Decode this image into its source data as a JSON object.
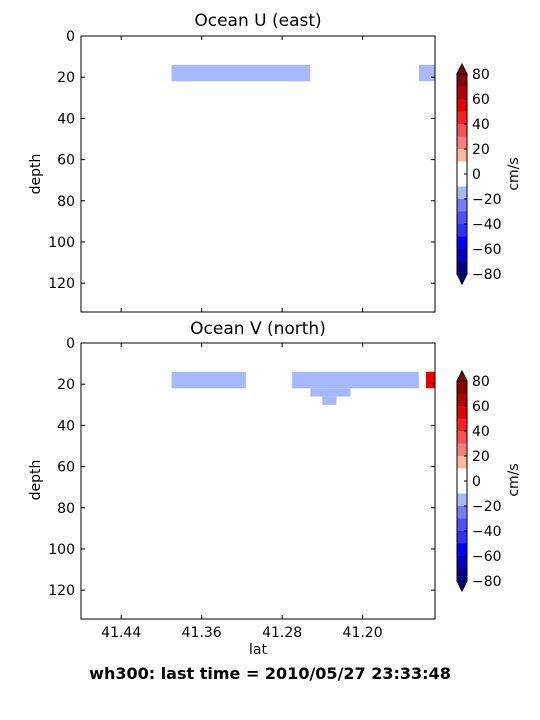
{
  "footer_title": "wh300: last time = 2010/05/27 23:33:48",
  "colorbar": {
    "label": "cm/s",
    "ticks": [
      -80,
      -60,
      -40,
      -20,
      0,
      20,
      40,
      60,
      80
    ],
    "tick_labels": [
      "−80",
      "−60",
      "−40",
      "−20",
      "0",
      "20",
      "40",
      "60",
      "80"
    ],
    "levels": [
      -80,
      -70,
      -60,
      -50,
      -40,
      -30,
      -20,
      -10,
      0,
      10,
      20,
      30,
      40,
      50,
      60,
      70,
      80
    ],
    "colors": [
      "#00008a",
      "#0000c8",
      "#0000ff",
      "#2f2fff",
      "#5050ff",
      "#7a7aff",
      "#a8b8ff",
      "#ffffff",
      "#ffffff",
      "#ffb8a0",
      "#ff7a7a",
      "#ff5050",
      "#ff1e1e",
      "#e60000",
      "#b40000",
      "#8a0000"
    ],
    "under_color": "#00008a",
    "over_color": "#8a0000"
  },
  "chart_data": [
    {
      "type": "heatmap",
      "title": "Ocean U (east)",
      "xlabel": "",
      "ylabel": "depth",
      "xlim": [
        41.48,
        41.128
      ],
      "ylim": [
        134,
        0
      ],
      "xticks": [
        41.44,
        41.36,
        41.28,
        41.2
      ],
      "xtick_labels": [
        "",
        "",
        "",
        ""
      ],
      "yticks": [
        0,
        20,
        40,
        60,
        80,
        100,
        120
      ],
      "ytick_labels": [
        "0",
        "20",
        "40",
        "60",
        "80",
        "100",
        "120"
      ],
      "cells": [
        {
          "lat": [
            41.39,
            41.252
          ],
          "depth": [
            14,
            22
          ],
          "value": -15
        },
        {
          "lat": [
            41.252,
            41.144
          ],
          "depth": [
            14,
            22
          ],
          "value": 5
        },
        {
          "lat": [
            41.144,
            41.128
          ],
          "depth": [
            14,
            22
          ],
          "value": -15
        },
        {
          "lat": [
            41.252,
            41.212
          ],
          "depth": [
            22,
            26
          ],
          "value": 5
        },
        {
          "lat": [
            41.24,
            41.226
          ],
          "depth": [
            26,
            30
          ],
          "value": 5
        }
      ]
    },
    {
      "type": "heatmap",
      "title": "Ocean V (north)",
      "xlabel": "lat",
      "ylabel": "depth",
      "xlim": [
        41.48,
        41.128
      ],
      "ylim": [
        134,
        0
      ],
      "xticks": [
        41.44,
        41.36,
        41.28,
        41.2
      ],
      "xtick_labels": [
        "41.44",
        "41.36",
        "41.28",
        "41.20"
      ],
      "yticks": [
        0,
        20,
        40,
        60,
        80,
        100,
        120
      ],
      "ytick_labels": [
        "0",
        "20",
        "40",
        "60",
        "80",
        "100",
        "120"
      ],
      "cells": [
        {
          "lat": [
            41.39,
            41.316
          ],
          "depth": [
            14,
            22
          ],
          "value": -15
        },
        {
          "lat": [
            41.316,
            41.27
          ],
          "depth": [
            14,
            22
          ],
          "value": 5
        },
        {
          "lat": [
            41.27,
            41.144
          ],
          "depth": [
            14,
            22
          ],
          "value": -15
        },
        {
          "lat": [
            41.144,
            41.137
          ],
          "depth": [
            14,
            22
          ],
          "value": 5
        },
        {
          "lat": [
            41.137,
            41.128
          ],
          "depth": [
            14,
            22
          ],
          "value": 55
        },
        {
          "lat": [
            41.252,
            41.212
          ],
          "depth": [
            22,
            26
          ],
          "value": -15
        },
        {
          "lat": [
            41.24,
            41.226
          ],
          "depth": [
            26,
            30
          ],
          "value": -15
        }
      ]
    }
  ]
}
